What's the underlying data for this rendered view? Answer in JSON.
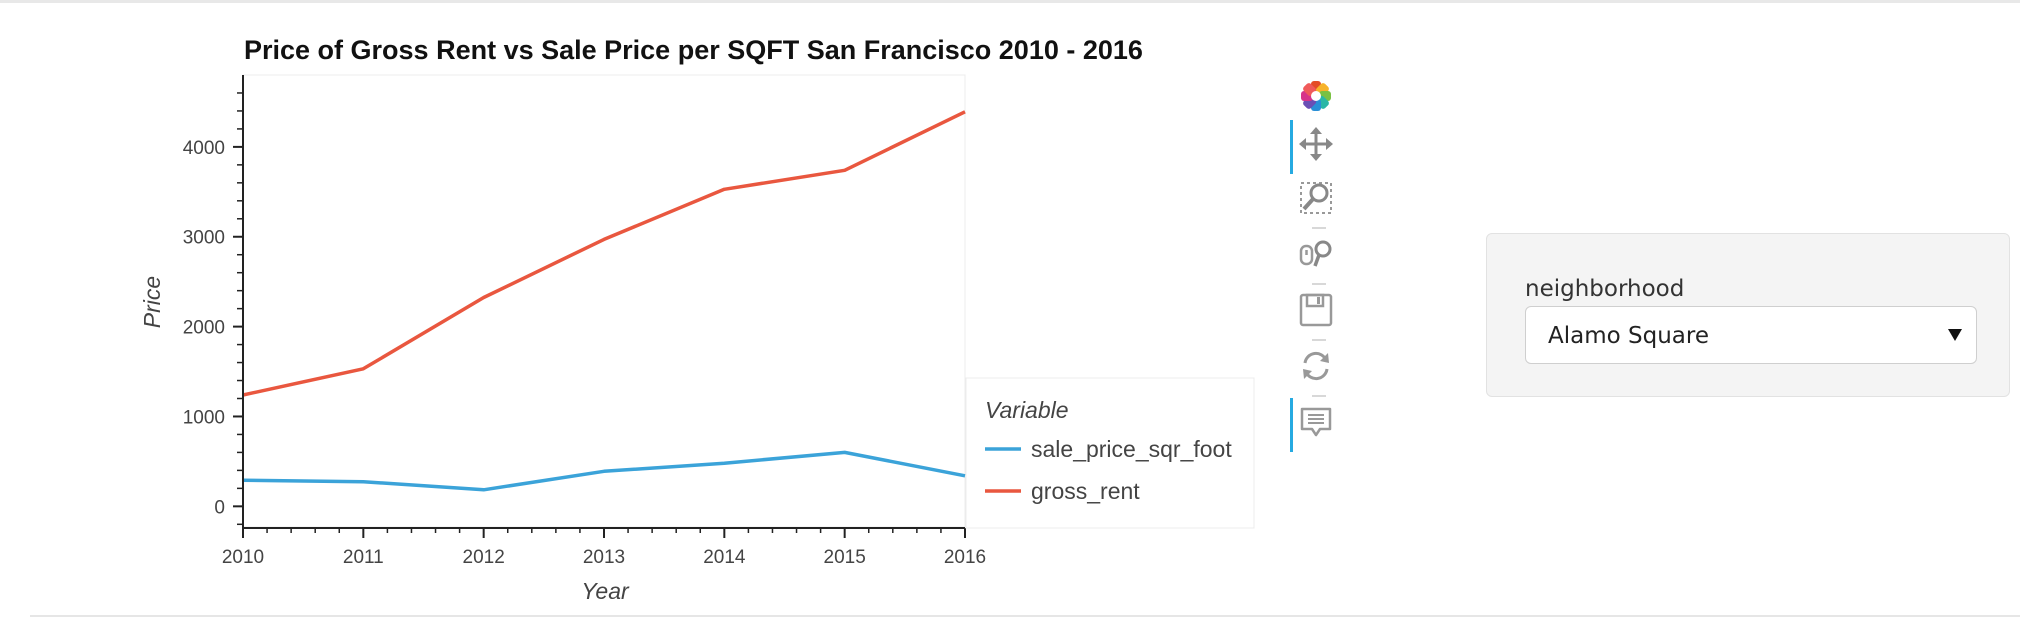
{
  "chart_data": {
    "type": "line",
    "title": "Price of Gross Rent vs Sale Price per SQFT San Francisco 2010 - 2016",
    "xlabel": "Year",
    "ylabel": "Price",
    "xlim": [
      2010,
      2016
    ],
    "ylim": [
      -230,
      4800
    ],
    "x_ticks": [
      2010,
      2011,
      2012,
      2013,
      2014,
      2015,
      2016
    ],
    "y_ticks": [
      0,
      1000,
      2000,
      3000,
      4000
    ],
    "grid": false,
    "legend_title": "Variable",
    "legend_position": "right",
    "x": [
      2010,
      2011,
      2012,
      2013,
      2014,
      2015,
      2016
    ],
    "series": [
      {
        "name": "sale_price_sqr_foot",
        "color": "#3ba3d9",
        "values": [
          291,
          274,
          184,
          390,
          480,
          600,
          340
        ]
      },
      {
        "name": "gross_rent",
        "color": "#e9573f",
        "values": [
          1239,
          1530,
          2324,
          2971,
          3528,
          3739,
          4390
        ]
      }
    ]
  },
  "toolbar": {
    "tools": [
      {
        "name": "bokeh-logo",
        "active": false
      },
      {
        "name": "pan-tool",
        "active": true
      },
      {
        "name": "box-zoom-tool",
        "active": false
      },
      {
        "name": "wheel-zoom-tool",
        "active": false
      },
      {
        "name": "save-tool",
        "active": false
      },
      {
        "name": "reset-tool",
        "active": false
      },
      {
        "name": "hover-tool",
        "active": true
      }
    ]
  },
  "widget": {
    "label": "neighborhood",
    "selected": "Alamo Square"
  }
}
